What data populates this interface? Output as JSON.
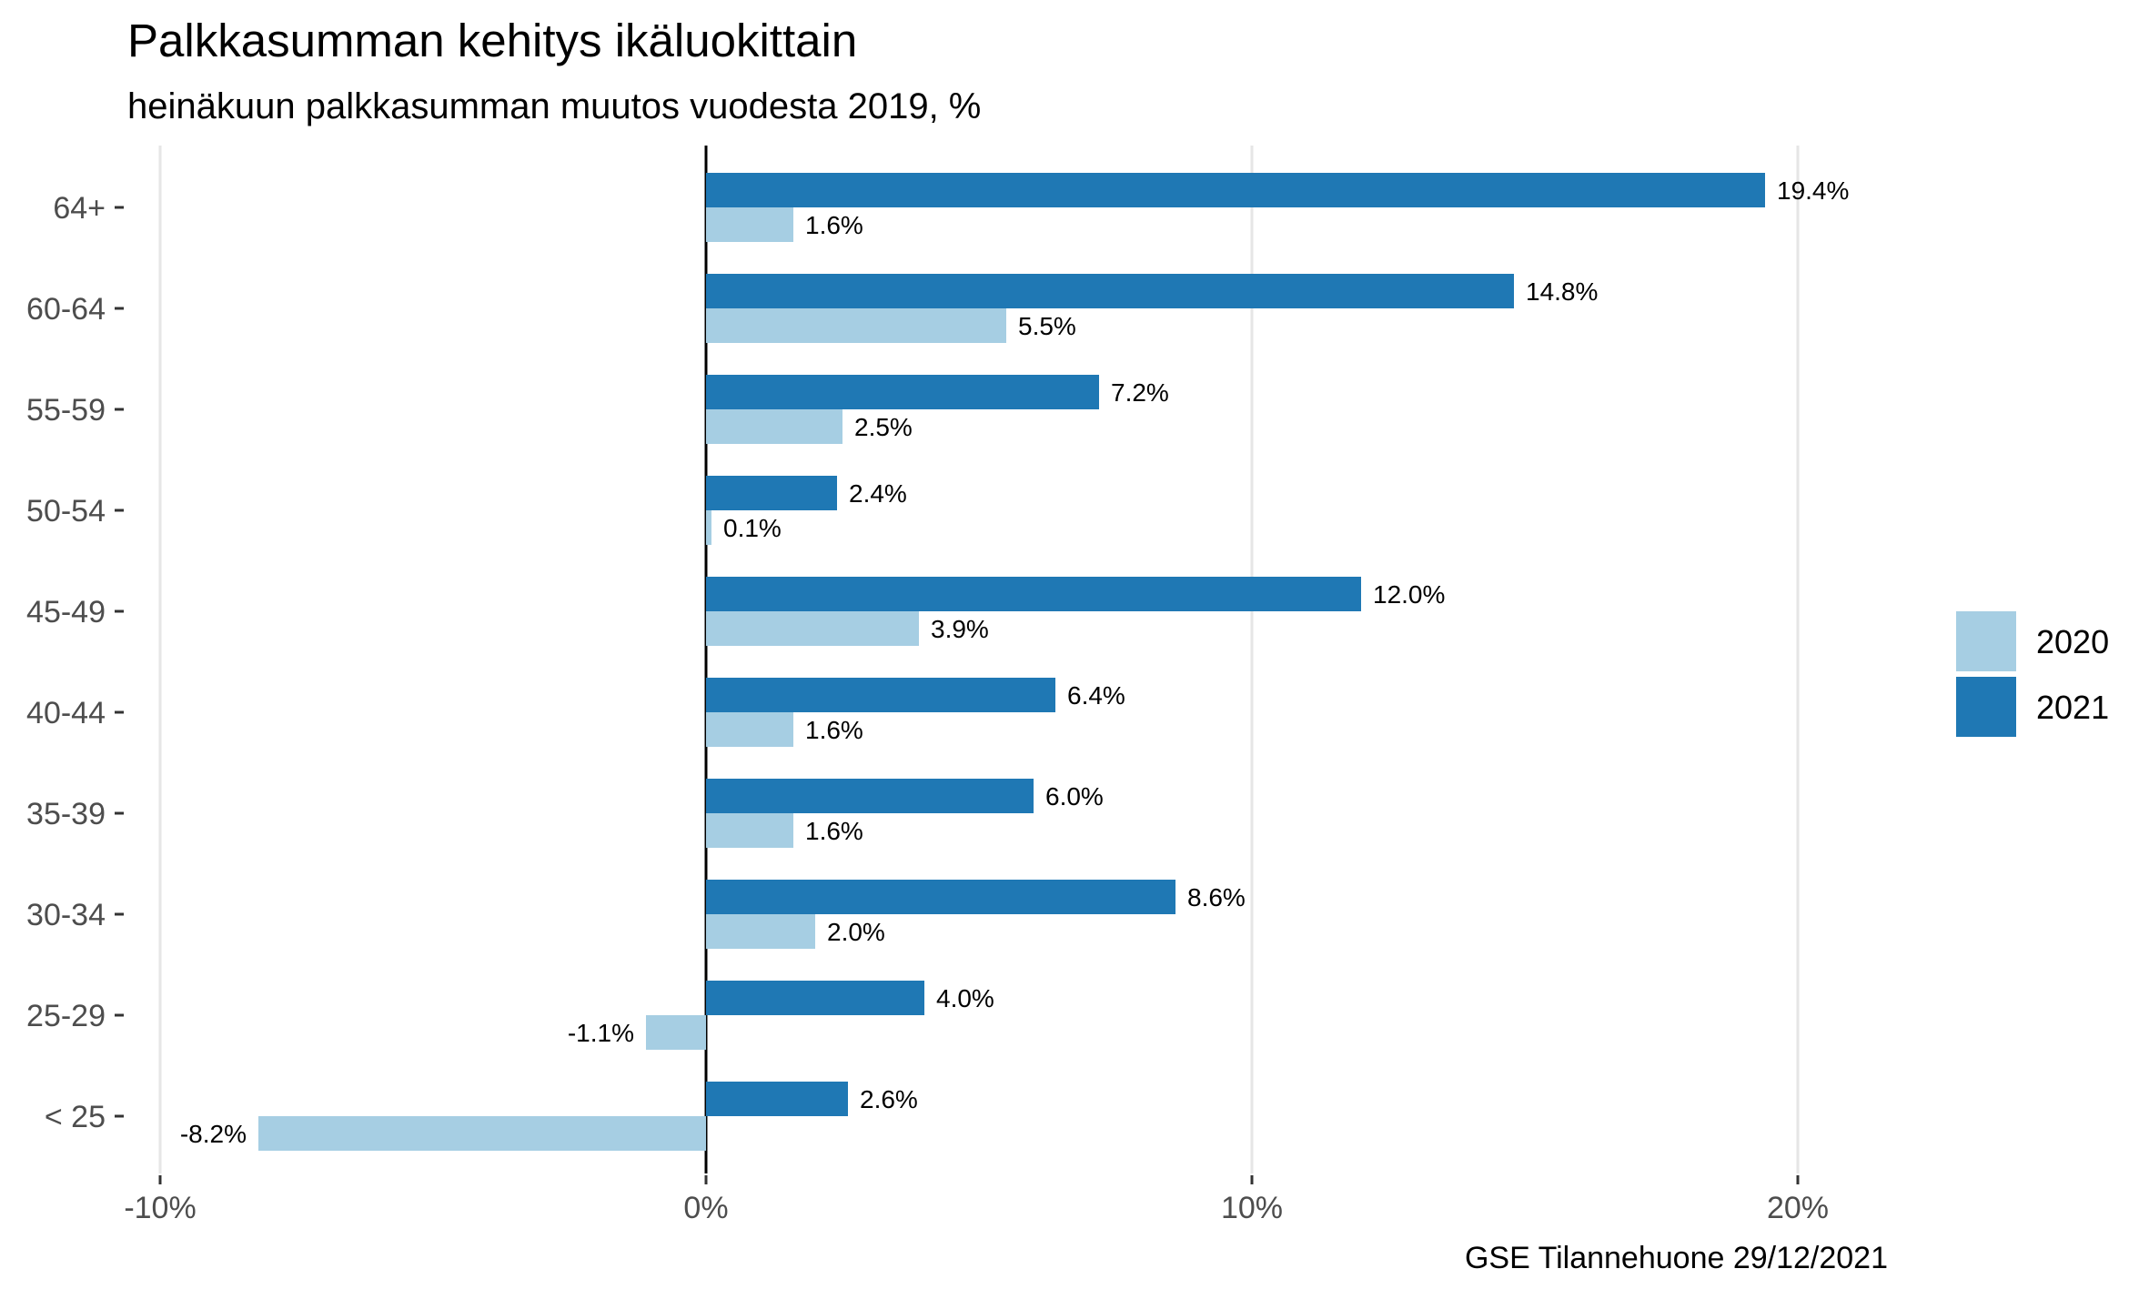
{
  "chart_data": {
    "type": "bar",
    "orientation": "horizontal",
    "title": "Palkkasumman kehitys ikäluokittain",
    "subtitle": "heinäkuun palkkasumman muutos vuodesta 2019, %",
    "caption": "GSE Tilannehuone 29/12/2021",
    "categories": [
      "64+",
      "60-64",
      "55-59",
      "50-54",
      "45-49",
      "40-44",
      "35-39",
      "30-34",
      "25-29",
      "< 25"
    ],
    "series": [
      {
        "name": "2021",
        "color": "#1f78b4",
        "values": [
          19.4,
          14.8,
          7.2,
          2.4,
          12.0,
          6.4,
          6.0,
          8.6,
          4.0,
          2.6
        ],
        "labels": [
          "19.4%",
          "14.8%",
          "7.2%",
          "2.4%",
          "12.0%",
          "6.4%",
          "6.0%",
          "8.6%",
          "4.0%",
          "2.6%"
        ]
      },
      {
        "name": "2020",
        "color": "#a6cee3",
        "values": [
          1.6,
          5.5,
          2.5,
          0.1,
          3.9,
          1.6,
          1.6,
          2.0,
          -1.1,
          -8.2
        ],
        "labels": [
          "1.6%",
          "5.5%",
          "2.5%",
          "0.1%",
          "3.9%",
          "1.6%",
          "1.6%",
          "2.0%",
          "-1.1%",
          "-8.2%"
        ]
      }
    ],
    "xlim": [
      -10,
      20
    ],
    "xticks": [
      -10,
      0,
      10,
      20
    ],
    "xtick_labels": [
      "-10%",
      "0%",
      "10%",
      "20%"
    ],
    "legend": {
      "position": "right",
      "entries": [
        "2020",
        "2021"
      ]
    },
    "grid": "vertical major only"
  }
}
